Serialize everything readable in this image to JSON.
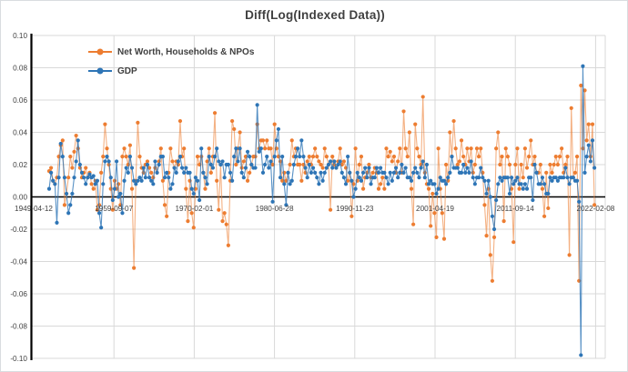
{
  "title": "Diff(Log(Indexed Data))",
  "chart_data": {
    "type": "line",
    "title": "Diff(Log(Indexed Data))",
    "frequency": "quarterly",
    "x_start": "1951-Q2",
    "x_end": "2022-Q1",
    "x_tick_labels": [
      "1949-04-12",
      "1959-09-07",
      "1970-02-01",
      "1980-06-28",
      "1990-11-23",
      "2001-04-19",
      "2011-09-14",
      "2022-02-08"
    ],
    "y_ticks": [
      "0.10",
      "0.08",
      "0.06",
      "0.04",
      "0.02",
      "0.00",
      "-0.02",
      "-0.04",
      "-0.06",
      "-0.08",
      "-0.10"
    ],
    "ylim": [
      -0.1,
      0.1
    ],
    "grid": true,
    "grid_color": "#D9D9D9",
    "axis_color": "#000000",
    "legend_position": "top-left-inside",
    "series": [
      {
        "name": "Net Worth, Households & NPOs",
        "color": "#ED7D31",
        "line_opacity": 0.6,
        "values": [
          0.016,
          0.018,
          0.01,
          0.008,
          0.012,
          0.025,
          0.032,
          0.035,
          -0.005,
          0.002,
          0.012,
          0.025,
          0.018,
          0.028,
          0.038,
          0.03,
          0.018,
          0.012,
          0.015,
          0.018,
          0.012,
          0.015,
          0.008,
          0.005,
          0.01,
          -0.008,
          -0.005,
          0.015,
          0.025,
          0.045,
          0.03,
          0.02,
          0.005,
          -0.008,
          0.01,
          0.005,
          0.008,
          -0.005,
          0.025,
          0.03,
          0.025,
          0.02,
          0.032,
          0.005,
          -0.044,
          0.01,
          0.046,
          0.025,
          0.018,
          0.015,
          0.02,
          0.022,
          0.018,
          0.015,
          0.012,
          0.018,
          0.015,
          0.022,
          0.03,
          0.01,
          -0.005,
          -0.012,
          0.015,
          0.03,
          0.022,
          0.018,
          0.022,
          0.02,
          0.047,
          0.025,
          0.03,
          0.005,
          -0.015,
          0.01,
          -0.01,
          -0.019,
          0.005,
          0.025,
          0.02,
          0.025,
          0.015,
          0.005,
          0.022,
          0.03,
          0.015,
          0.025,
          0.052,
          0.01,
          -0.008,
          0.02,
          -0.015,
          -0.01,
          -0.017,
          -0.03,
          0.01,
          0.047,
          0.042,
          0.02,
          0.03,
          0.04,
          0.018,
          0.022,
          0.025,
          0.01,
          0.015,
          0.02,
          0.025,
          0.025,
          0.045,
          0.03,
          0.035,
          0.035,
          0.03,
          0.035,
          0.03,
          0.03,
          0.02,
          0.045,
          0.03,
          0.025,
          0.022,
          0.01,
          0.015,
          0.01,
          0.015,
          0.02,
          0.035,
          0.025,
          0.03,
          0.02,
          0.02,
          0.01,
          0.02,
          0.015,
          0.022,
          0.025,
          0.02,
          0.025,
          0.03,
          0.025,
          0.022,
          0.02,
          0.018,
          0.03,
          0.025,
          0.02,
          -0.008,
          0.025,
          0.02,
          0.018,
          0.022,
          0.03,
          0.02,
          0.022,
          0.018,
          0.01,
          0.015,
          -0.012,
          0.008,
          0.03,
          0.01,
          0.02,
          0.025,
          0.005,
          0.012,
          0.015,
          0.02,
          0.012,
          0.015,
          0.018,
          0.015,
          0.005,
          0.008,
          0.012,
          0.005,
          0.03,
          0.025,
          0.028,
          0.022,
          0.025,
          0.015,
          0.022,
          0.03,
          0.015,
          0.053,
          0.03,
          0.025,
          0.04,
          0.005,
          -0.017,
          0.045,
          0.03,
          0.025,
          0.02,
          0.062,
          0.015,
          0.008,
          0.005,
          -0.018,
          0.002,
          -0.01,
          -0.025,
          0.03,
          0.005,
          -0.01,
          -0.026,
          0.02,
          0.01,
          0.04,
          0.025,
          0.047,
          0.03,
          0.02,
          0.022,
          0.035,
          0.025,
          0.02,
          0.03,
          0.022,
          0.03,
          0.015,
          0.02,
          0.03,
          0.025,
          0.03,
          0.015,
          -0.005,
          -0.024,
          0.005,
          -0.036,
          -0.052,
          -0.025,
          0.03,
          0.04,
          0.02,
          0.025,
          -0.015,
          0.03,
          0.025,
          0.02,
          0.005,
          -0.028,
          0.02,
          0.03,
          0.005,
          0.02,
          0.012,
          0.03,
          0.018,
          0.025,
          0.035,
          0.02,
          0.025,
          0.015,
          0.015,
          0.02,
          0.005,
          -0.012,
          0.015,
          -0.007,
          0.02,
          0.015,
          0.02,
          0.025,
          0.02,
          0.025,
          0.03,
          0.015,
          0.02,
          0.025,
          -0.036,
          0.055,
          0.012,
          0.015,
          0.025,
          -0.052,
          0.069,
          0.03,
          0.066,
          0.035,
          0.045,
          0.025,
          0.045,
          -0.005
        ]
      },
      {
        "name": "GDP",
        "color": "#2E75B6",
        "line_opacity": 0.8,
        "values": [
          0.005,
          0.015,
          0.01,
          0.008,
          -0.016,
          0.012,
          0.033,
          0.025,
          0.012,
          0.002,
          -0.01,
          -0.005,
          0.002,
          0.012,
          0.022,
          0.035,
          0.02,
          0.015,
          0.012,
          0.008,
          0.012,
          0.014,
          0.012,
          0.013,
          0.008,
          0.01,
          -0.01,
          -0.019,
          0.008,
          0.022,
          0.025,
          0.022,
          0.012,
          -0.002,
          0.005,
          0.022,
          0.0,
          0.002,
          -0.01,
          0.01,
          0.018,
          0.015,
          0.025,
          0.018,
          0.01,
          0.008,
          0.01,
          0.012,
          0.01,
          0.018,
          0.012,
          0.02,
          0.012,
          0.01,
          0.008,
          0.022,
          0.015,
          0.02,
          0.025,
          0.025,
          0.012,
          0.015,
          0.012,
          0.005,
          0.008,
          0.018,
          0.015,
          0.022,
          0.025,
          0.018,
          0.015,
          0.018,
          0.015,
          0.015,
          0.005,
          0.002,
          0.012,
          0.01,
          -0.002,
          0.03,
          0.015,
          0.012,
          0.008,
          0.025,
          0.02,
          0.018,
          0.025,
          0.03,
          0.022,
          0.02,
          0.022,
          0.012,
          0.02,
          0.02,
          0.015,
          0.01,
          0.025,
          0.03,
          0.022,
          0.03,
          0.015,
          0.012,
          0.018,
          0.028,
          0.025,
          0.02,
          0.018,
          0.018,
          0.057,
          0.028,
          0.03,
          0.015,
          0.02,
          0.025,
          0.018,
          0.022,
          -0.003,
          0.025,
          0.035,
          0.042,
          0.012,
          0.025,
          0.008,
          -0.005,
          0.015,
          0.008,
          0.01,
          0.02,
          0.025,
          0.03,
          0.025,
          0.035,
          0.025,
          0.018,
          0.012,
          0.02,
          0.015,
          0.018,
          0.015,
          0.012,
          0.008,
          0.015,
          0.01,
          0.015,
          0.018,
          0.02,
          0.022,
          0.018,
          0.022,
          0.018,
          0.02,
          0.022,
          0.015,
          0.012,
          0.008,
          0.025,
          0.015,
          0.01,
          0.0,
          0.005,
          0.015,
          0.012,
          0.01,
          0.015,
          0.018,
          0.012,
          0.018,
          0.008,
          0.012,
          0.012,
          0.018,
          0.015,
          0.018,
          0.015,
          0.015,
          0.012,
          0.008,
          0.015,
          0.01,
          0.015,
          0.018,
          0.012,
          0.015,
          0.02,
          0.015,
          0.018,
          0.012,
          0.012,
          0.01,
          0.015,
          0.018,
          0.015,
          0.012,
          0.018,
          0.022,
          0.012,
          0.02,
          0.008,
          0.01,
          0.008,
          0.008,
          0.002,
          0.005,
          0.012,
          0.01,
          0.01,
          0.008,
          0.012,
          0.015,
          0.025,
          0.018,
          0.018,
          0.018,
          0.015,
          0.015,
          0.02,
          0.015,
          0.018,
          0.015,
          0.022,
          0.012,
          0.008,
          0.012,
          0.012,
          0.018,
          0.012,
          0.01,
          0.002,
          0.01,
          0.0,
          -0.012,
          -0.02,
          -0.002,
          0.008,
          0.012,
          0.01,
          0.012,
          0.012,
          0.012,
          0.002,
          0.012,
          0.008,
          0.01,
          0.012,
          0.008,
          0.008,
          0.005,
          0.008,
          0.005,
          0.012,
          0.012,
          -0.002,
          0.02,
          0.015,
          0.008,
          0.008,
          0.012,
          0.008,
          0.002,
          0.002,
          0.012,
          0.01,
          0.012,
          0.012,
          0.01,
          0.012,
          0.012,
          0.012,
          0.018,
          0.012,
          0.008,
          0.012,
          0.012,
          0.01,
          0.01,
          -0.003,
          -0.098,
          0.081,
          0.015,
          0.025,
          0.032,
          0.022,
          0.035,
          0.018
        ]
      }
    ]
  }
}
